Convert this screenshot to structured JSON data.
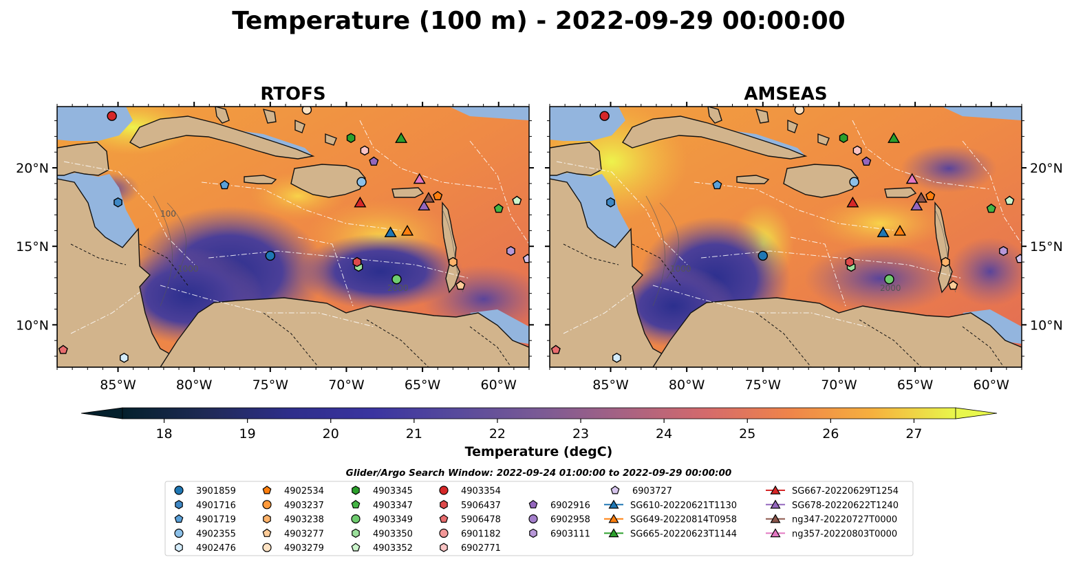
{
  "figure": {
    "title": "Temperature (100 m) - 2022-09-29 00:00:00"
  },
  "panels": [
    {
      "title": "RTOFS"
    },
    {
      "title": "AMSEAS"
    }
  ],
  "axes": {
    "lon_ticks": [
      "85°W",
      "80°W",
      "75°W",
      "70°W",
      "65°W",
      "60°W"
    ],
    "lat_ticks": [
      "20°N",
      "15°N",
      "10°N"
    ],
    "lon_range": [
      -89,
      -58
    ],
    "lat_range": [
      7.3,
      23.9
    ]
  },
  "colorbar": {
    "label": "Temperature (degC)",
    "min": 17.5,
    "max": 27.5,
    "ticks": [
      "18",
      "19",
      "20",
      "21",
      "22",
      "23",
      "24",
      "25",
      "26",
      "27"
    ],
    "extend": "both",
    "colormap": "thermal"
  },
  "contour_labels": [
    "100",
    "1000",
    "2000"
  ],
  "colors": {
    "land": "#d2b48c",
    "shelf": "#93b5de",
    "background": "#ffffff"
  },
  "legend": {
    "title": "Glider/Argo Search Window: 2022-09-24 01:00:00 to 2022-09-29 00:00:00",
    "columns": [
      [
        {
          "label": "3901859",
          "marker": "circle",
          "color": "#1f77b4"
        },
        {
          "label": "4901716",
          "marker": "hexagon",
          "color": "#3f88c5"
        },
        {
          "label": "4901719",
          "marker": "pentagon",
          "color": "#5aa0d8"
        },
        {
          "label": "4902355",
          "marker": "circle",
          "color": "#8cc0e8"
        },
        {
          "label": "4902476",
          "marker": "hexagon",
          "color": "#d4ecfb"
        }
      ],
      [
        {
          "label": "4902534",
          "marker": "pentagon",
          "color": "#ff7f0e"
        },
        {
          "label": "4903237",
          "marker": "circle",
          "color": "#ff9a3c"
        },
        {
          "label": "4903238",
          "marker": "hexagon",
          "color": "#ffb36b"
        },
        {
          "label": "4903277",
          "marker": "pentagon",
          "color": "#ffcc98"
        },
        {
          "label": "4903279",
          "marker": "circle",
          "color": "#ffe3c4"
        }
      ],
      [
        {
          "label": "4903345",
          "marker": "hexagon",
          "color": "#2ca02c"
        },
        {
          "label": "4903347",
          "marker": "pentagon",
          "color": "#45b545"
        },
        {
          "label": "4903349",
          "marker": "circle",
          "color": "#6fcc6f"
        },
        {
          "label": "4903350",
          "marker": "hexagon",
          "color": "#9be09b"
        },
        {
          "label": "4903352",
          "marker": "pentagon",
          "color": "#ccf5cc"
        }
      ],
      [
        {
          "label": "4903354",
          "marker": "circle",
          "color": "#d62728"
        },
        {
          "label": "5906437",
          "marker": "hexagon",
          "color": "#de4a4b"
        },
        {
          "label": "5906478",
          "marker": "pentagon",
          "color": "#e86d6e"
        },
        {
          "label": "6901182",
          "marker": "circle",
          "color": "#f29797"
        },
        {
          "label": "6902771",
          "marker": "hexagon",
          "color": "#fac4c4"
        }
      ],
      [
        {
          "label": "6902916",
          "marker": "pentagon",
          "color": "#9467bd"
        },
        {
          "label": "6902958",
          "marker": "circle",
          "color": "#a47fcb"
        },
        {
          "label": "6903111",
          "marker": "hexagon",
          "color": "#b898d8"
        },
        {
          "label": "6903727",
          "marker": "pentagon",
          "color": "#d6c4ec"
        },
        {
          "label": "SG610-20220621T1130",
          "marker": "triangle-line",
          "color": "#1f77b4"
        },
        {
          "label": "SG649-20220814T0958",
          "marker": "triangle-line",
          "color": "#ff7f0e"
        },
        {
          "label": "SG665-20220623T1144",
          "marker": "triangle-line",
          "color": "#2ca02c"
        }
      ],
      [
        {
          "label": "SG667-20220629T1254",
          "marker": "triangle-line",
          "color": "#d62728"
        },
        {
          "label": "SG678-20220622T1240",
          "marker": "triangle-line",
          "color": "#9467bd"
        },
        {
          "label": "ng347-20220727T0000",
          "marker": "triangle-line",
          "color": "#8c564b"
        },
        {
          "label": "ng357-20220803T0000",
          "marker": "triangle-line",
          "color": "#e377c2"
        }
      ]
    ]
  },
  "observations": [
    {
      "id": "3901859",
      "lon": -75.0,
      "lat": 14.4
    },
    {
      "id": "4901716",
      "lon": -85.0,
      "lat": 17.8
    },
    {
      "id": "4901719",
      "lon": -78.0,
      "lat": 18.9
    },
    {
      "id": "4902355",
      "lon": -69.0,
      "lat": 19.1
    },
    {
      "id": "4902476",
      "lon": -84.6,
      "lat": 7.9
    },
    {
      "id": "4902534",
      "lon": -64.0,
      "lat": 18.2
    },
    {
      "id": "4903238",
      "lon": -63.0,
      "lat": 14.0
    },
    {
      "id": "4903277",
      "lon": -62.5,
      "lat": 12.5
    },
    {
      "id": "4903279",
      "lon": -72.6,
      "lat": 23.7
    },
    {
      "id": "4903345",
      "lon": -69.7,
      "lat": 21.9
    },
    {
      "id": "4903347",
      "lon": -60.0,
      "lat": 17.4
    },
    {
      "id": "4903349",
      "lon": -66.7,
      "lat": 12.9
    },
    {
      "id": "4903350",
      "lon": -69.2,
      "lat": 13.7
    },
    {
      "id": "4903352",
      "lon": -58.8,
      "lat": 17.9
    },
    {
      "id": "4903354",
      "lon": -85.4,
      "lat": 23.3
    },
    {
      "id": "5906437",
      "lon": -69.3,
      "lat": 14.0
    },
    {
      "id": "5906478",
      "lon": -88.6,
      "lat": 8.4
    },
    {
      "id": "6902771",
      "lon": -68.8,
      "lat": 21.1
    },
    {
      "id": "6902916",
      "lon": -68.2,
      "lat": 20.4
    },
    {
      "id": "6903111",
      "lon": -59.2,
      "lat": 14.7
    },
    {
      "id": "6903727",
      "lon": -58.1,
      "lat": 14.2
    },
    {
      "id": "SG610-20220621T1130",
      "lon": -67.1,
      "lat": 15.9
    },
    {
      "id": "SG649-20220814T0958",
      "lon": -66.0,
      "lat": 16.0
    },
    {
      "id": "SG665-20220623T1144",
      "lon": -66.4,
      "lat": 21.9
    },
    {
      "id": "SG667-20220629T1254",
      "lon": -69.1,
      "lat": 17.8
    },
    {
      "id": "SG678-20220622T1240",
      "lon": -64.9,
      "lat": 17.6
    },
    {
      "id": "ng347-20220727T0000",
      "lon": -64.6,
      "lat": 18.1
    },
    {
      "id": "ng357-20220803T0000",
      "lon": -65.2,
      "lat": 19.3
    }
  ]
}
